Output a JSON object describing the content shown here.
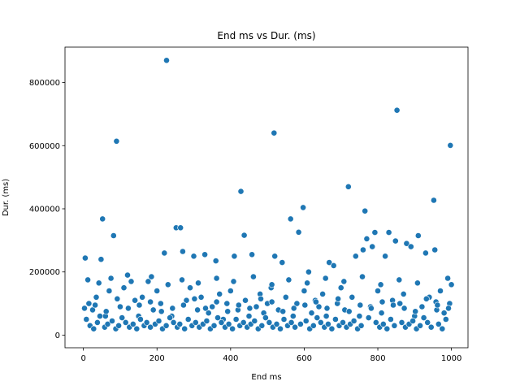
{
  "chart_data": {
    "type": "scatter",
    "title": "End ms vs Dur. (ms)",
    "xlabel": "End ms",
    "ylabel": "Dur. (ms)",
    "xlim": [
      -50,
      1045
    ],
    "ylim": [
      -40000,
      912000
    ],
    "xticks": [
      0,
      200,
      400,
      600,
      800,
      1000
    ],
    "xtick_labels": [
      "0",
      "200",
      "400",
      "600",
      "800",
      "1000"
    ],
    "yticks": [
      0,
      200000,
      400000,
      600000,
      800000
    ],
    "ytick_labels": [
      "0",
      "200000",
      "400000",
      "600000",
      "800000"
    ],
    "grid": false,
    "marker_color": "#1f77b4",
    "marker_edge_color": "#ffffff",
    "series": [
      {
        "x": [
          226,
          852,
          90,
          518,
          997,
          720,
          428,
          952,
          765,
          597,
          52,
          252,
          264,
          563,
          585,
          437,
          792,
          770,
          830,
          848,
          910,
          82,
          5,
          48,
          220,
          120,
          176,
          270,
          300,
          330,
          360,
          410,
          458,
          520,
          540,
          612,
          668,
          680,
          740,
          760,
          785,
          820,
          878,
          890,
          930,
          955,
          990,
          15,
          25,
          35,
          60,
          70,
          100,
          110,
          140,
          150,
          160,
          190,
          200,
          210,
          240,
          280,
          290,
          310,
          320,
          340,
          350,
          370,
          380,
          390,
          400,
          420,
          440,
          450,
          470,
          480,
          490,
          500,
          510,
          530,
          550,
          570,
          580,
          600,
          620,
          630,
          640,
          650,
          660,
          690,
          700,
          710,
          730,
          750,
          780,
          800,
          810,
          840,
          860,
          870,
          900,
          920,
          940,
          960,
          970,
          980,
          995,
          8,
          18,
          28,
          38,
          45,
          58,
          66,
          78,
          88,
          96,
          105,
          115,
          125,
          135,
          145,
          155,
          165,
          172,
          182,
          195,
          205,
          215,
          225,
          235,
          245,
          255,
          262,
          275,
          285,
          295,
          305,
          315,
          325,
          335,
          345,
          355,
          365,
          375,
          385,
          395,
          405,
          415,
          425,
          435,
          445,
          455,
          465,
          475,
          485,
          495,
          505,
          515,
          525,
          535,
          545,
          555,
          565,
          575,
          590,
          605,
          615,
          625,
          635,
          645,
          655,
          665,
          675,
          685,
          695,
          705,
          715,
          725,
          735,
          745,
          755,
          775,
          795,
          805,
          815,
          825,
          835,
          845,
          865,
          875,
          885,
          895,
          905,
          915,
          925,
          935,
          945,
          965,
          975,
          985,
          1000,
          12,
          42,
          75,
          130,
          185,
          230,
          268,
          312,
          362,
          408,
          462,
          512,
          558,
          608,
          658,
          708,
          758,
          808,
          858,
          908,
          958,
          3,
          32,
          62,
          92,
          122,
          152,
          182,
          212,
          242,
          272,
          302,
          332,
          362,
          392,
          422,
          452,
          482,
          512,
          542,
          572,
          602,
          632,
          662,
          692,
          722,
          752,
          782,
          812,
          842,
          872,
          902,
          932,
          962,
          992
        ],
        "y": [
          870000,
          712000,
          614000,
          640000,
          601000,
          470000,
          455000,
          427000,
          393000,
          404000,
          368000,
          340000,
          340000,
          368000,
          326000,
          316000,
          325000,
          305000,
          325000,
          298000,
          315000,
          315000,
          244000,
          240000,
          260000,
          190000,
          170000,
          265000,
          250000,
          255000,
          235000,
          250000,
          255000,
          250000,
          230000,
          200000,
          230000,
          220000,
          250000,
          270000,
          280000,
          250000,
          290000,
          280000,
          260000,
          270000,
          180000,
          100000,
          80000,
          120000,
          60000,
          140000,
          90000,
          150000,
          110000,
          60000,
          120000,
          80000,
          140000,
          100000,
          60000,
          110000,
          150000,
          80000,
          120000,
          70000,
          90000,
          130000,
          50000,
          100000,
          140000,
          80000,
          110000,
          60000,
          90000,
          130000,
          70000,
          100000,
          150000,
          80000,
          120000,
          60000,
          100000,
          140000,
          70000,
          110000,
          90000,
          130000,
          60000,
          100000,
          150000,
          80000,
          120000,
          60000,
          90000,
          140000,
          70000,
          110000,
          100000,
          130000,
          60000,
          90000,
          120000,
          80000,
          140000,
          70000,
          100000,
          50000,
          30000,
          20000,
          40000,
          60000,
          25000,
          35000,
          45000,
          20000,
          30000,
          55000,
          40000,
          25000,
          35000,
          20000,
          50000,
          30000,
          40000,
          25000,
          35000,
          45000,
          20000,
          30000,
          55000,
          40000,
          25000,
          35000,
          20000,
          50000,
          30000,
          40000,
          25000,
          35000,
          45000,
          20000,
          30000,
          55000,
          40000,
          25000,
          35000,
          20000,
          50000,
          30000,
          40000,
          25000,
          35000,
          45000,
          20000,
          30000,
          55000,
          40000,
          25000,
          35000,
          20000,
          50000,
          30000,
          40000,
          25000,
          35000,
          45000,
          20000,
          30000,
          55000,
          40000,
          25000,
          35000,
          20000,
          50000,
          30000,
          40000,
          25000,
          35000,
          45000,
          20000,
          30000,
          55000,
          40000,
          25000,
          35000,
          20000,
          50000,
          30000,
          40000,
          25000,
          35000,
          45000,
          20000,
          30000,
          55000,
          40000,
          25000,
          35000,
          20000,
          50000,
          160000,
          175000,
          165000,
          180000,
          170000,
          185000,
          160000,
          175000,
          165000,
          180000,
          170000,
          185000,
          160000,
          175000,
          165000,
          180000,
          170000,
          185000,
          160000,
          175000,
          165000,
          105000,
          85000,
          95000,
          75000,
          115000,
          85000,
          95000,
          105000,
          75000,
          85000,
          95000,
          115000,
          85000,
          105000,
          75000,
          95000,
          85000,
          115000,
          105000,
          75000,
          85000,
          95000,
          105000,
          85000,
          115000,
          75000,
          95000,
          85000,
          105000,
          95000,
          85000,
          75000,
          115000,
          95000,
          85000
        ]
      }
    ]
  }
}
